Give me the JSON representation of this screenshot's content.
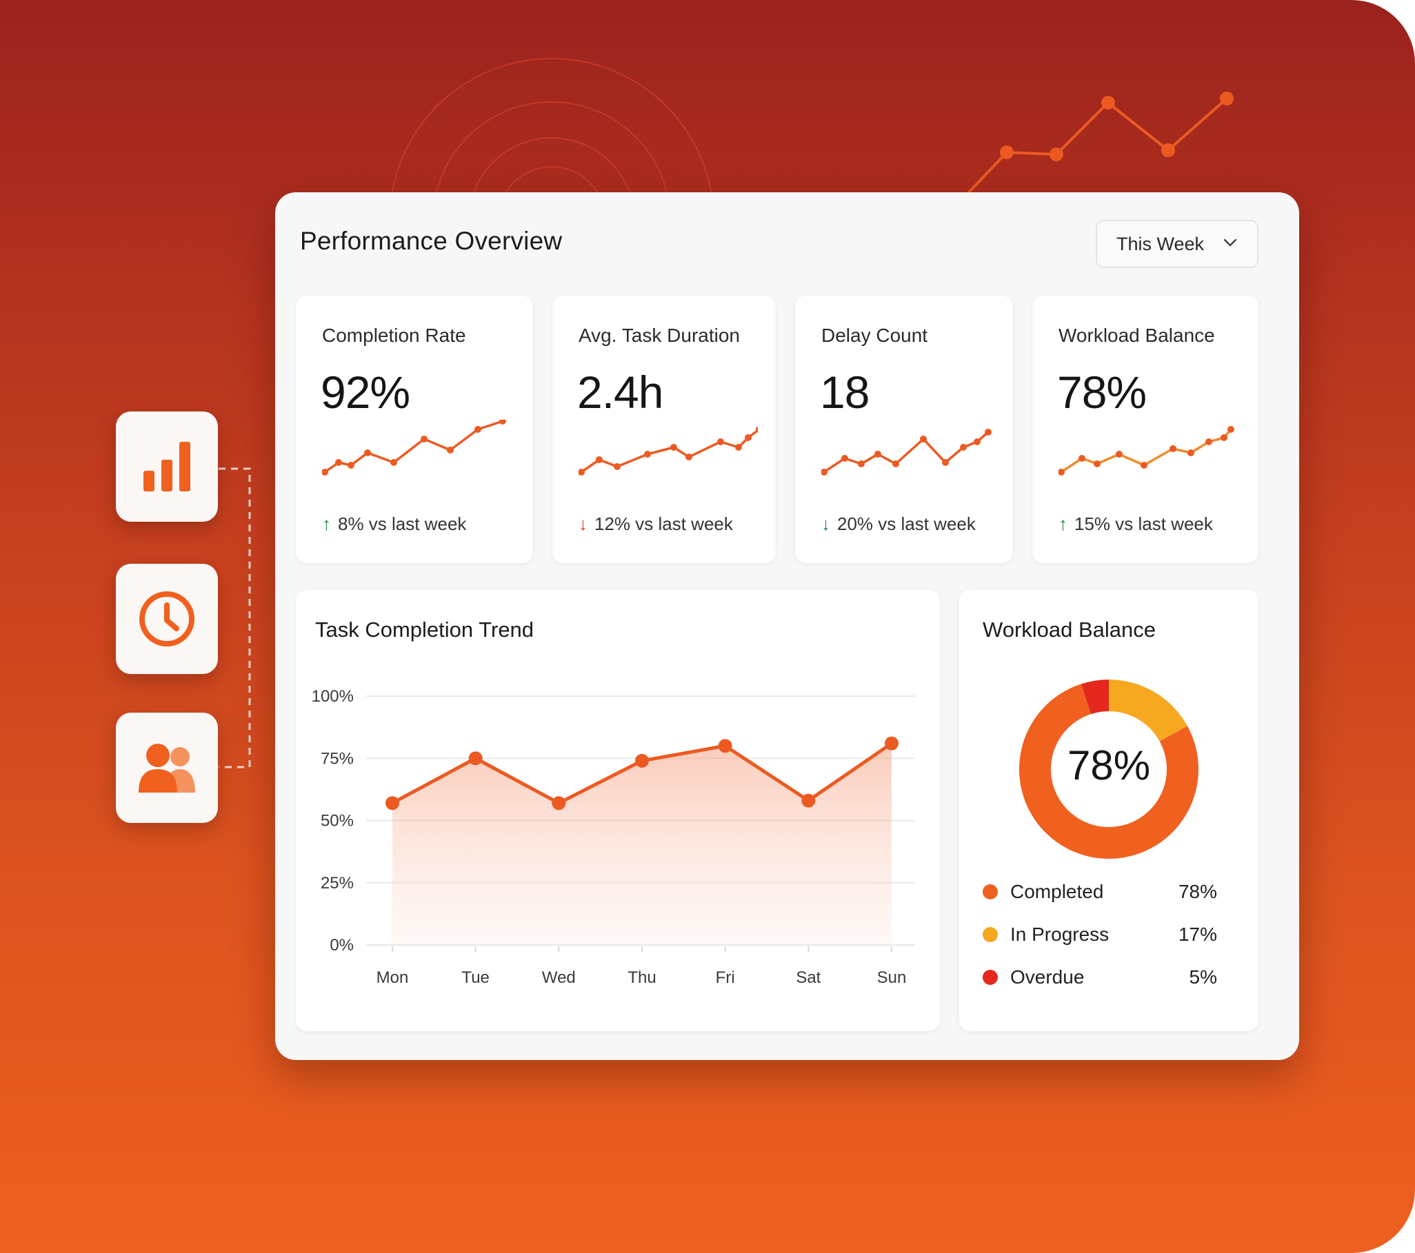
{
  "panel": {
    "title": "Performance Overview",
    "period_select": "This Week"
  },
  "side_icons": [
    {
      "icon": "bar-chart-icon"
    },
    {
      "icon": "clock-icon"
    },
    {
      "icon": "users-icon"
    }
  ],
  "kpis": [
    {
      "label": "Completion Rate",
      "value": "92%",
      "delta": "8% vs last week",
      "direction": "up"
    },
    {
      "label": "Avg. Task Duration",
      "value": "2.4h",
      "delta": "12% vs last week",
      "direction": "down"
    },
    {
      "label": "Delay Count",
      "value": "18",
      "delta": "20% vs last week",
      "direction": "down"
    },
    {
      "label": "Workload Balance",
      "value": "78%",
      "delta": "15% vs last week",
      "direction": "up"
    }
  ],
  "trend": {
    "title": "Task Completion Trend"
  },
  "workload": {
    "title": "Workload Balance",
    "center_value": "78%",
    "legend": [
      {
        "label": "Completed",
        "value": "78%",
        "color": "#f0601f"
      },
      {
        "label": "In Progress",
        "value": "17%",
        "color": "#f6a821"
      },
      {
        "label": "Overdue",
        "value": "5%",
        "color": "#e5281e"
      }
    ]
  },
  "colors": {
    "accent": "#f0601f",
    "positive": "#1e8a3c",
    "negative": "#e43c1c"
  },
  "chart_data": [
    {
      "type": "area",
      "title": "Task Completion Trend",
      "categories": [
        "Mon",
        "Tue",
        "Wed",
        "Thu",
        "Fri",
        "Sat",
        "Sun"
      ],
      "values": [
        57,
        75,
        57,
        74,
        80,
        58,
        81
      ],
      "ylim": [
        0,
        100
      ],
      "yticks": [
        "0%",
        "25%",
        "50%",
        "75%",
        "100%"
      ],
      "grid": true
    },
    {
      "type": "pie",
      "title": "Workload Balance",
      "categories": [
        "Completed",
        "In Progress",
        "Overdue"
      ],
      "values": [
        78,
        17,
        5
      ]
    }
  ]
}
